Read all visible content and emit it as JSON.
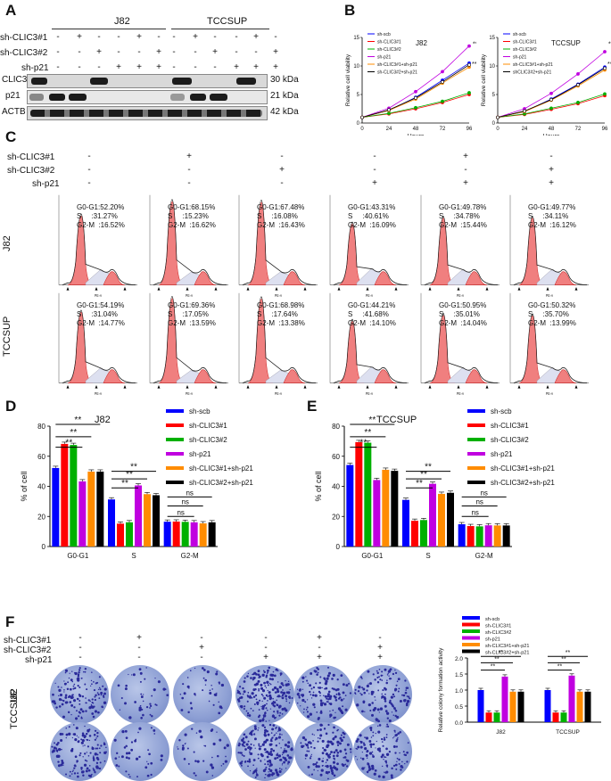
{
  "panels": {
    "A": "A",
    "B": "B",
    "C": "C",
    "D": "D",
    "E": "E",
    "F": "F"
  },
  "blot": {
    "cell_lines": [
      "J82",
      "TCCSUP"
    ],
    "row_labels": [
      "sh-CLIC3#1",
      "sh-CLIC3#2",
      "sh-p21"
    ],
    "signs": [
      [
        "-",
        "+",
        "-",
        "-",
        "+",
        "-",
        "-",
        "+",
        "-",
        "-",
        "+",
        "-"
      ],
      [
        "-",
        "-",
        "+",
        "-",
        "-",
        "+",
        "-",
        "-",
        "+",
        "-",
        "-",
        "+"
      ],
      [
        "-",
        "-",
        "-",
        "+",
        "+",
        "+",
        "-",
        "-",
        "-",
        "+",
        "+",
        "+"
      ]
    ],
    "proteins": [
      "CLIC3",
      "p21",
      "ACTB"
    ],
    "kda": [
      "30 kDa",
      "21 kDa",
      "42 kDa"
    ]
  },
  "viability": {
    "titles": [
      "J82",
      "TCCSUP"
    ],
    "ylabel": "Relative cell viability",
    "xlabel": "Hours",
    "legend": [
      "sh-scb",
      "sh-CLIC3#1",
      "sh-CLIC3#2",
      "sh-p21",
      "sh-CLIC3#1+sh-p21",
      "sh-CLIC3#2+sh-p21"
    ],
    "legend_tcc": [
      "sh-scb",
      "sh-CLIC3#1",
      "sh-CLIC3#2",
      "sh-p21",
      "sh-CLIC3#1+sh-p21",
      "shCLIC3#2+sh-p21"
    ],
    "sig": "**"
  },
  "cellcycle": {
    "row_labels": [
      "sh-CLIC3#1",
      "sh-CLIC3#2",
      "sh-p21"
    ],
    "signs": [
      [
        "-",
        "+",
        "-",
        "-",
        "+",
        "-"
      ],
      [
        "-",
        "-",
        "+",
        "-",
        "-",
        "+"
      ],
      [
        "-",
        "-",
        "-",
        "+",
        "+",
        "+"
      ]
    ],
    "cell_lines": [
      "J82",
      "TCCSUP"
    ],
    "axis": "PE-A",
    "j82": [
      [
        "G0-G1:52.20%",
        "S     :31.27%",
        "G2-M  :16.52%"
      ],
      [
        "G0-G1:68.15%",
        "S     :15.23%",
        "G2-M  :16.62%"
      ],
      [
        "G0-G1:67.48%",
        "S     :16.08%",
        "G2-M  :16.43%"
      ],
      [
        "G0-G1:43.31%",
        "S     :40.61%",
        "G2-M  :16.09%"
      ],
      [
        "G0-G1:49.78%",
        "S     :34.78%",
        "G2-M  :15.44%"
      ],
      [
        "G0-G1:49.77%",
        "S     :34.11%",
        "G2-M  :16.12%"
      ]
    ],
    "tccsup": [
      [
        "G0-G1:54.19%",
        "S     :31.04%",
        "G2-M  :14.77%"
      ],
      [
        "G0-G1:69.36%",
        "S     :17.05%",
        "G2-M  :13.59%"
      ],
      [
        "G0-G1:68.98%",
        "S     :17.64%",
        "G2-M  :13.38%"
      ],
      [
        "G0-G1:44.21%",
        "S     :41.68%",
        "G2-M  :14.10%"
      ],
      [
        "G0-G1:50.95%",
        "S     :35.01%",
        "G2-M  :14.04%"
      ],
      [
        "G0-G1:50.32%",
        "S     :35.70%",
        "G2-M  :13.99%"
      ]
    ]
  },
  "colors": [
    "#0000ff",
    "#ff0000",
    "#00b000",
    "#c000e0",
    "#ff8c00",
    "#000000"
  ],
  "chart_data": [
    {
      "type": "bar",
      "title": "J82",
      "ylabel": "% of cell",
      "categories": [
        "G0-G1",
        "S",
        "G2-M"
      ],
      "ylim": [
        0,
        80
      ],
      "yticks": [
        "0",
        "20",
        "40",
        "60",
        "80"
      ],
      "series": [
        {
          "name": "sh-scb",
          "values": [
            52.2,
            31.3,
            16.5
          ]
        },
        {
          "name": "sh-CLIC3#1",
          "values": [
            68.2,
            15.2,
            16.6
          ]
        },
        {
          "name": "sh-CLIC3#2",
          "values": [
            67.5,
            16.1,
            16.4
          ]
        },
        {
          "name": "sh-p21",
          "values": [
            43.3,
            40.6,
            16.1
          ]
        },
        {
          "name": "sh-CLIC3#1+sh-p21",
          "values": [
            49.8,
            34.8,
            15.4
          ]
        },
        {
          "name": "sh-CLIC3#2+sh-p21",
          "values": [
            49.8,
            34.1,
            16.1
          ]
        }
      ],
      "annotations": [
        "**",
        "**",
        "**",
        "**",
        "**",
        "**",
        "ns",
        "ns",
        "ns"
      ]
    },
    {
      "type": "bar",
      "title": "TCCSUP",
      "ylabel": "% of cell",
      "categories": [
        "G0-G1",
        "S",
        "G2-M"
      ],
      "ylim": [
        0,
        80
      ],
      "yticks": [
        "0",
        "20",
        "40",
        "60",
        "80"
      ],
      "series": [
        {
          "name": "sh-scb",
          "values": [
            54.2,
            31.0,
            14.8
          ]
        },
        {
          "name": "sh-CLIC3#1",
          "values": [
            69.4,
            17.1,
            13.6
          ]
        },
        {
          "name": "sh-CLIC3#2",
          "values": [
            69.0,
            17.6,
            13.4
          ]
        },
        {
          "name": "sh-p21",
          "values": [
            44.2,
            41.7,
            14.1
          ]
        },
        {
          "name": "sh-CLIC3#1+sh-p21",
          "values": [
            51.0,
            35.0,
            14.0
          ]
        },
        {
          "name": "sh-CLIC3#2+sh-p21",
          "values": [
            50.3,
            35.7,
            14.0
          ]
        }
      ],
      "annotations": [
        "**",
        "**",
        "**",
        "**",
        "**",
        "**",
        "ns",
        "ns",
        "ns"
      ]
    },
    {
      "type": "bar",
      "ylabel": "Relative colony formation activity",
      "categories": [
        "J82",
        "TCCSUP"
      ],
      "ylim": [
        0,
        2.0
      ],
      "yticks": [
        "0.0",
        "0.5",
        "1.0",
        "1.5",
        "2.0"
      ],
      "series": [
        {
          "name": "sh-scb",
          "values": [
            1.0,
            1.0
          ]
        },
        {
          "name": "sh-CLIC3#1",
          "values": [
            0.3,
            0.3
          ]
        },
        {
          "name": "sh-CLIC3#2",
          "values": [
            0.3,
            0.3
          ]
        },
        {
          "name": "sh-p21",
          "values": [
            1.42,
            1.45
          ]
        },
        {
          "name": "sh-CLIC3#1+sh-p21",
          "values": [
            0.95,
            0.95
          ]
        },
        {
          "name": "sh-CLIC3#2+sh-p21",
          "values": [
            0.95,
            0.95
          ]
        }
      ],
      "annotations": [
        "**",
        "**",
        "**",
        "**",
        "**",
        "**"
      ]
    },
    {
      "type": "line",
      "title": "J82",
      "xlabel": "Hours",
      "ylabel": "Relative cell viability",
      "x": [
        0,
        24,
        48,
        72,
        96
      ],
      "ylim": [
        0,
        15
      ],
      "series": [
        {
          "name": "sh-scb",
          "values": [
            1,
            2.2,
            4.5,
            7.5,
            10.5
          ]
        },
        {
          "name": "sh-CLIC3#1",
          "values": [
            1,
            1.6,
            2.5,
            3.6,
            5.0
          ]
        },
        {
          "name": "sh-CLIC3#2",
          "values": [
            1,
            1.7,
            2.7,
            3.8,
            5.3
          ]
        },
        {
          "name": "sh-p21",
          "values": [
            1,
            2.6,
            5.5,
            9.0,
            13.5
          ]
        },
        {
          "name": "sh-CLIC3#1+sh-p21",
          "values": [
            1,
            2.2,
            4.2,
            7.0,
            9.8
          ]
        },
        {
          "name": "sh-CLIC3#2+sh-p21",
          "values": [
            1,
            2.3,
            4.4,
            7.2,
            10.2
          ]
        }
      ]
    },
    {
      "type": "line",
      "title": "TCCSUP",
      "xlabel": "Hours",
      "ylabel": "Relative cell viability",
      "x": [
        0,
        24,
        48,
        72,
        96
      ],
      "ylim": [
        0,
        15
      ],
      "series": [
        {
          "name": "sh-scb",
          "values": [
            1,
            2.0,
            4.2,
            6.8,
            9.8
          ]
        },
        {
          "name": "sh-CLIC3#1",
          "values": [
            1,
            1.5,
            2.4,
            3.4,
            4.8
          ]
        },
        {
          "name": "sh-CLIC3#2",
          "values": [
            1,
            1.6,
            2.6,
            3.6,
            5.1
          ]
        },
        {
          "name": "sh-p21",
          "values": [
            1,
            2.5,
            5.2,
            8.6,
            12.5
          ]
        },
        {
          "name": "sh-CLIC3#1+sh-p21",
          "values": [
            1,
            2.0,
            4.0,
            6.5,
            9.3
          ]
        },
        {
          "name": "sh-CLIC3#2+sh-p21",
          "values": [
            1,
            2.1,
            4.1,
            6.7,
            9.6
          ]
        }
      ]
    }
  ]
}
